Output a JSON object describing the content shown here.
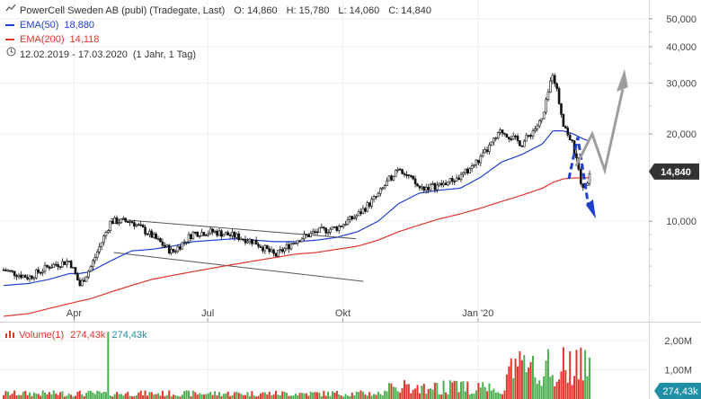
{
  "header": {
    "title": "PowerCell Sweden AB (publ) (Tradegate, Last)",
    "open_label": "O:",
    "open": "14,860",
    "high_label": "H:",
    "high": "15,780",
    "low_label": "L:",
    "low": "14,060",
    "close_label": "C:",
    "close": "14,840"
  },
  "indicators": [
    {
      "label": "EMA(50)",
      "value": "18,880",
      "color": "#1f3fd1"
    },
    {
      "label": "EMA(200)",
      "value": "14,118",
      "color": "#e0362b"
    }
  ],
  "period": {
    "range": "12.02.2019 - 17.03.2020",
    "detail": "(1 Jahr, 1 Tag)"
  },
  "volume": {
    "label": "Volume(1)",
    "value1": "274,43k",
    "value2": "274,43k",
    "badge": "274,43k"
  },
  "last_price_badge": "14,840",
  "colors": {
    "up": "#4caf50",
    "down": "#e0362b",
    "candle": "#111111",
    "grid": "#eeeeee",
    "badge": "#333333",
    "vol_badge": "#1f8fa6",
    "arrow_blue": "#1f3fd1",
    "arrow_grey": "#9e9e9e"
  },
  "chart_data": {
    "type": "line",
    "title": "PowerCell Sweden AB (publ) (Tradegate, Last)",
    "y_scale": "log",
    "y_ticks": [
      "50,000",
      "40,000",
      "30,000",
      "20,000",
      "10,000"
    ],
    "y_tick_values": [
      50,
      40,
      30,
      20,
      10
    ],
    "x_ticks": [
      "Apr",
      "Jul",
      "Okt",
      "Jan '20"
    ],
    "ylim": [
      4.5,
      58
    ],
    "x": [
      "2019-02-12",
      "2019-03-01",
      "2019-03-15",
      "2019-03-29",
      "2019-04-05",
      "2019-04-12",
      "2019-04-26",
      "2019-05-10",
      "2019-05-24",
      "2019-06-07",
      "2019-06-21",
      "2019-07-05",
      "2019-07-19",
      "2019-08-02",
      "2019-08-16",
      "2019-08-30",
      "2019-09-13",
      "2019-09-27",
      "2019-10-11",
      "2019-10-25",
      "2019-11-08",
      "2019-11-22",
      "2019-12-06",
      "2019-12-20",
      "2020-01-03",
      "2020-01-17",
      "2020-01-31",
      "2020-02-14",
      "2020-02-21",
      "2020-02-28",
      "2020-03-06",
      "2020-03-13",
      "2020-03-17"
    ],
    "series": [
      {
        "name": "PowerCell Sweden AB (publ) (Tradegate, Last)",
        "values": [
          6.8,
          6.4,
          7.0,
          7.3,
          6.0,
          6.9,
          10.0,
          10.0,
          8.9,
          7.8,
          9.1,
          9.2,
          8.9,
          8.5,
          7.6,
          8.6,
          9.2,
          9.5,
          10.5,
          12.3,
          15.5,
          13.0,
          13.3,
          14.2,
          16.5,
          20.5,
          18.5,
          22.5,
          33.0,
          22.0,
          18.0,
          12.5,
          14.84
        ]
      },
      {
        "name": "EMA(50)",
        "values": [
          6.0,
          6.1,
          6.3,
          6.6,
          6.6,
          6.7,
          7.3,
          7.9,
          8.0,
          8.2,
          8.5,
          8.6,
          8.7,
          8.6,
          8.5,
          8.5,
          8.6,
          8.8,
          9.2,
          10.0,
          11.5,
          12.5,
          12.8,
          13.0,
          14.2,
          16.0,
          17.0,
          18.5,
          20.5,
          20.5,
          20.0,
          19.2,
          18.88
        ]
      },
      {
        "name": "EMA(200)",
        "values": [
          4.7,
          4.8,
          5.0,
          5.2,
          5.3,
          5.4,
          5.7,
          6.0,
          6.3,
          6.5,
          6.7,
          6.9,
          7.1,
          7.3,
          7.5,
          7.7,
          7.8,
          8.0,
          8.2,
          8.6,
          9.2,
          9.7,
          10.2,
          10.6,
          11.1,
          11.7,
          12.3,
          13.0,
          13.6,
          14.0,
          14.1,
          14.12,
          14.118
        ]
      }
    ],
    "volume_ticks": [
      "2,00M",
      "1,00M"
    ],
    "volume_ylim": [
      0,
      2.4
    ]
  }
}
